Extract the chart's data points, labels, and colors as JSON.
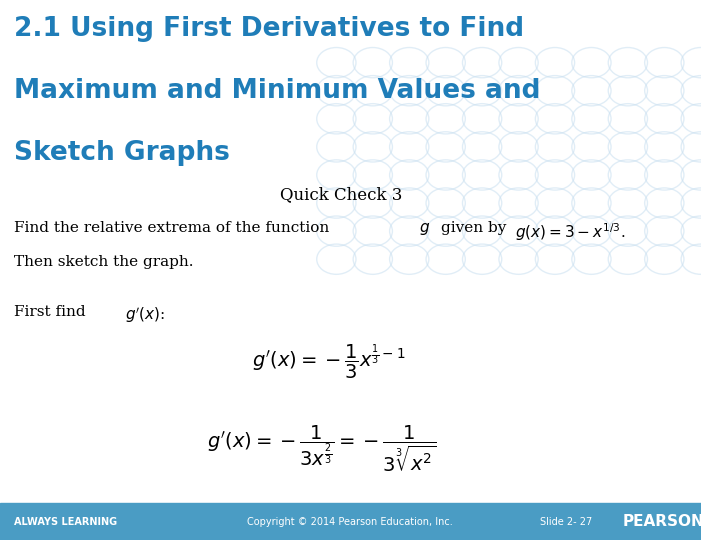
{
  "title_line1": "2.1 Using First Derivatives to Find",
  "title_line2": "Maximum and Minimum Values and",
  "title_line3": "Sketch Graphs",
  "title_color": "#1F7DB8",
  "subtitle": "Quick Check 3",
  "bg_color": "#FFFFFF",
  "footer_bg": "#4A9CC4",
  "footer_left": "ALWAYS LEARNING",
  "footer_center": "Copyright © 2014 Pearson Education, Inc.",
  "footer_right": "Slide 2- 27",
  "footer_logo": "PEARSON",
  "watermark_color": "#C8DFF0"
}
